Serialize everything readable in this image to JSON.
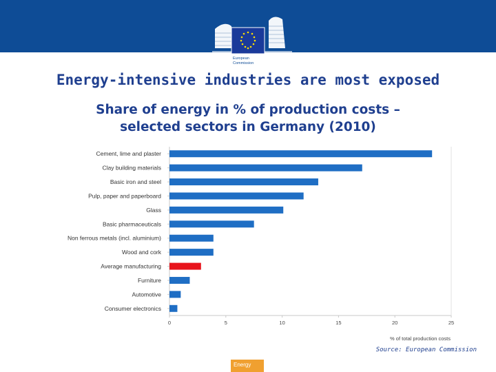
{
  "header": {
    "logo_text_line1": "European",
    "logo_text_line2": "Commission"
  },
  "slide_title": "Energy-intensive industries are most exposed",
  "chart_title_line1": "Share of energy in % of production costs –",
  "chart_title_line2": "selected sectors in Germany (2010)",
  "source": "Source: European Commission",
  "footer_label": "Energy",
  "colors": {
    "bar": "#1f6ec4",
    "highlight": "#e8141c",
    "header": "#0e4c96",
    "title": "#1f3f8f",
    "footer": "#f0a030"
  },
  "chart_data": {
    "type": "bar",
    "orientation": "horizontal",
    "title": "Share of energy in % of production costs – selected sectors in Germany (2010)",
    "xlabel": "% of total production costs",
    "ylabel": "",
    "xlim": [
      0,
      25
    ],
    "xticks": [
      0,
      5,
      10,
      15,
      20,
      25
    ],
    "categories": [
      "Cement, lime and plaster",
      "Clay building materials",
      "Basic iron and steel",
      "Pulp, paper and paperboard",
      "Glass",
      "Basic pharmaceuticals",
      "Non ferrous metals (incl. aluminium)",
      "Wood and cork",
      "Average manufacturing",
      "Furniture",
      "Automotive",
      "Consumer electronics"
    ],
    "values": [
      23.3,
      17.1,
      13.2,
      11.9,
      10.1,
      7.5,
      3.9,
      3.9,
      2.8,
      1.8,
      1.0,
      0.7
    ],
    "highlight_index": 8,
    "grid": false
  }
}
